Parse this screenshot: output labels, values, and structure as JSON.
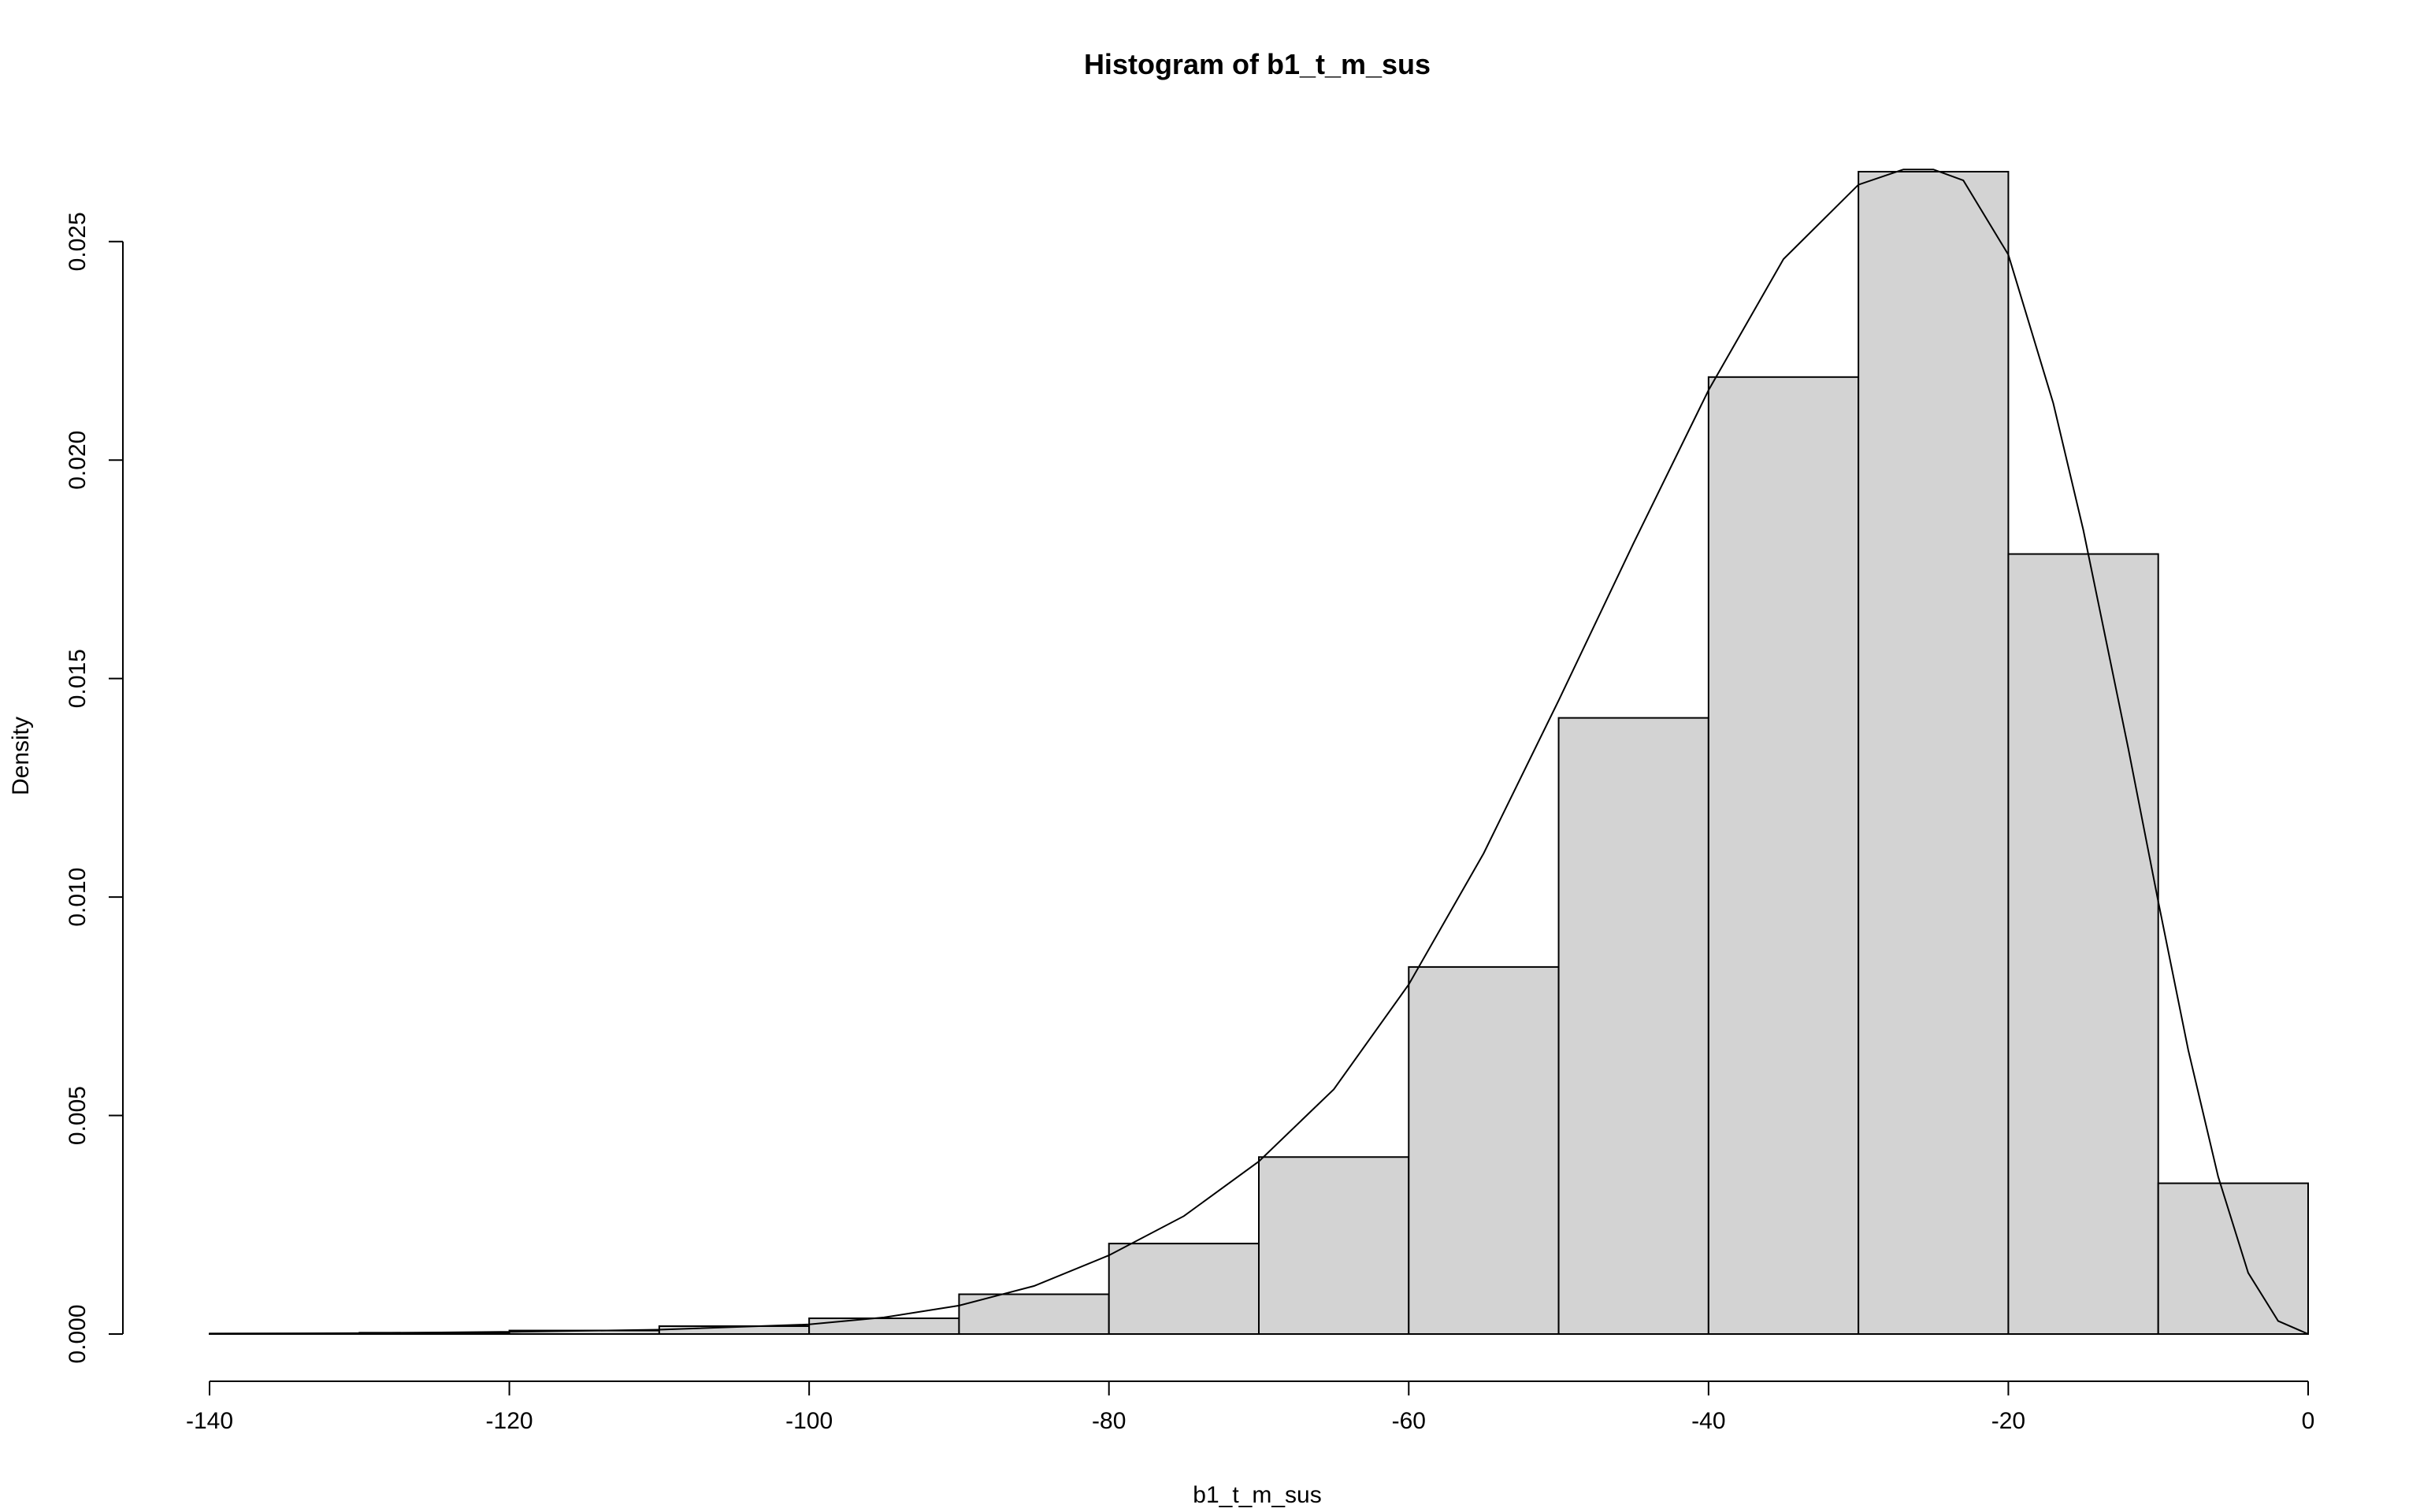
{
  "chart_data": {
    "type": "bar",
    "title": "Histogram of b1_t_m_sus",
    "xlabel": "b1_t_m_sus",
    "ylabel": "Density",
    "xlim": [
      -140,
      0
    ],
    "ylim": [
      0,
      0.0266
    ],
    "x_ticks": [
      -140,
      -120,
      -100,
      -80,
      -60,
      -40,
      -20,
      0
    ],
    "x_tick_labels": [
      "-140",
      "-120",
      "-100",
      "-80",
      "-60",
      "-40",
      "-20",
      "0"
    ],
    "y_ticks": [
      0,
      0.005,
      0.01,
      0.015,
      0.02,
      0.025
    ],
    "y_tick_labels": [
      "0.000",
      "0.005",
      "0.010",
      "0.015",
      "0.020",
      "0.025"
    ],
    "bin_edges": [
      -140,
      -130,
      -120,
      -110,
      -100,
      -90,
      -80,
      -70,
      -60,
      -50,
      -40,
      -30,
      -20,
      -10,
      0
    ],
    "values": [
      1e-05,
      3e-05,
      8e-05,
      0.00018,
      0.00036,
      0.00091,
      0.00207,
      0.00405,
      0.0084,
      0.0141,
      0.0219,
      0.0266,
      0.01785,
      0.00345
    ],
    "density_curve": {
      "x": [
        -140,
        -130,
        -120,
        -110,
        -100,
        -95,
        -90,
        -85,
        -80,
        -75,
        -70,
        -65,
        -60,
        -55,
        -50,
        -45,
        -40,
        -35,
        -30,
        -27,
        -25,
        -23,
        -20,
        -17,
        -15,
        -12,
        -10,
        -8,
        -6,
        -4,
        -2,
        0
      ],
      "y": [
        1e-05,
        2e-05,
        5e-05,
        0.0001,
        0.00022,
        0.00038,
        0.00065,
        0.0011,
        0.0018,
        0.0027,
        0.00395,
        0.0056,
        0.008,
        0.011,
        0.0145,
        0.0181,
        0.0216,
        0.0246,
        0.0263,
        0.02665,
        0.02665,
        0.0264,
        0.0247,
        0.0213,
        0.0184,
        0.0134,
        0.0099,
        0.0065,
        0.0036,
        0.0014,
        0.0003,
        0.0
      ]
    },
    "grid": false,
    "legend": "none",
    "colors": {
      "bar_fill": "#d3d3d3",
      "bar_stroke": "#000000",
      "curve": "#000000",
      "background": "#ffffff"
    }
  }
}
